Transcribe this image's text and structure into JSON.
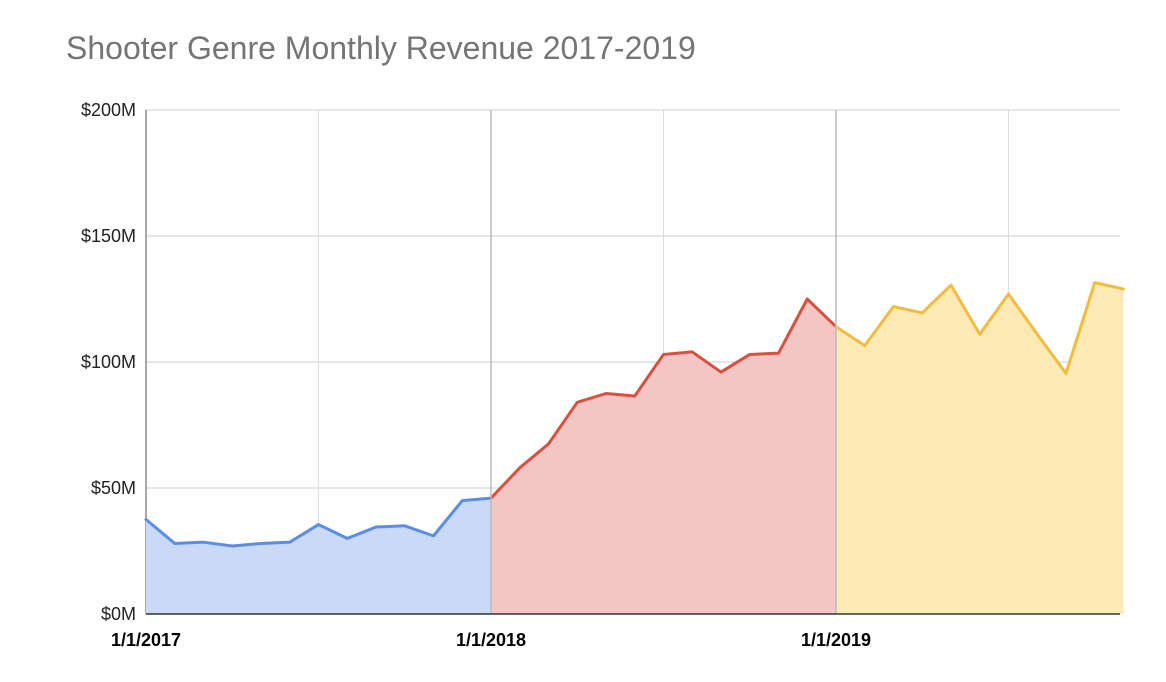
{
  "chart_data": {
    "type": "area",
    "title": "Shooter Genre Monthly Revenue 2017-2019",
    "xlabel": "",
    "ylabel": "",
    "ylim": [
      0,
      200
    ],
    "yticks": [
      "$0M",
      "$50M",
      "$100M",
      "$150M",
      "$200M"
    ],
    "ytick_values": [
      0,
      50,
      100,
      150,
      200
    ],
    "xticks": [
      "1/1/2017",
      "1/1/2018",
      "1/1/2019"
    ],
    "grid": true,
    "legend": "none",
    "series": [
      {
        "color": "#5b8ce6",
        "fill": "#c9d9f6",
        "x": [
          "2017-01",
          "2017-02",
          "2017-03",
          "2017-04",
          "2017-05",
          "2017-06",
          "2017-07",
          "2017-08",
          "2017-09",
          "2017-10",
          "2017-11",
          "2017-12",
          "2018-01"
        ],
        "values": [
          37.5,
          28,
          28.5,
          27,
          28,
          28.5,
          35.5,
          30,
          34.5,
          35,
          31,
          45,
          46
        ]
      },
      {
        "color": "#d9503f",
        "fill": "#f2c6c4",
        "x": [
          "2018-01",
          "2018-02",
          "2018-03",
          "2018-04",
          "2018-05",
          "2018-06",
          "2018-07",
          "2018-08",
          "2018-09",
          "2018-10",
          "2018-11",
          "2018-12",
          "2019-01"
        ],
        "values": [
          46,
          58,
          67.5,
          84,
          87.5,
          86.5,
          103,
          104,
          96,
          103,
          103.5,
          125,
          114
        ]
      },
      {
        "color": "#f0bd3e",
        "fill": "#fce9b5",
        "x": [
          "2019-01",
          "2019-02",
          "2019-03",
          "2019-04",
          "2019-05",
          "2019-06",
          "2019-07",
          "2019-08",
          "2019-09",
          "2019-10",
          "2019-11"
        ],
        "values": [
          114,
          106.5,
          122,
          119.5,
          130.5,
          111,
          127,
          111,
          95.5,
          131.5,
          129
        ]
      }
    ]
  }
}
